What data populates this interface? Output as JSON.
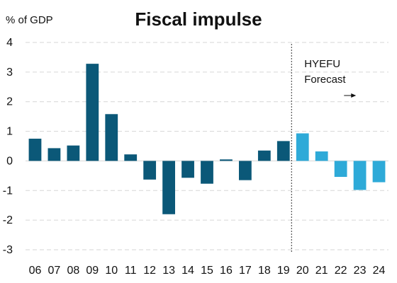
{
  "chart_data": {
    "type": "bar",
    "title": "Fiscal impulse",
    "ylabel": "% of GDP",
    "xlabel": "",
    "categories": [
      "06",
      "07",
      "08",
      "09",
      "10",
      "11",
      "12",
      "13",
      "14",
      "15",
      "16",
      "17",
      "18",
      "19",
      "20",
      "21",
      "22",
      "23",
      "24"
    ],
    "values": [
      0.75,
      0.43,
      0.52,
      3.28,
      1.58,
      0.22,
      -0.63,
      -1.8,
      -0.57,
      -0.77,
      0.05,
      -0.65,
      0.35,
      0.67,
      0.93,
      0.32,
      -0.54,
      -0.98,
      -0.72
    ],
    "forecast_start_index": 14,
    "ylim": [
      -3,
      4
    ],
    "yticks": [
      -3,
      -2,
      -1,
      0,
      1,
      2,
      3,
      4
    ],
    "grid": true,
    "colors": {
      "actual": "#0b5878",
      "forecast": "#2eaad8",
      "grid": "#d6d6d6",
      "divider": "#333333"
    },
    "annotation": {
      "line1": "HYEFU",
      "line2": "Forecast"
    }
  }
}
